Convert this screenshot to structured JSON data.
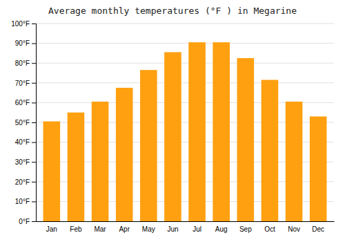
{
  "chart_data": {
    "type": "bar",
    "title": "Average monthly temperatures (°F ) in Megarine",
    "categories": [
      "Jan",
      "Feb",
      "Mar",
      "Apr",
      "May",
      "Jun",
      "Jul",
      "Aug",
      "Sep",
      "Oct",
      "Nov",
      "Dec"
    ],
    "values": [
      50.5,
      55,
      60.5,
      67.5,
      76.5,
      85.5,
      90.5,
      90.5,
      82.5,
      71.5,
      60.5,
      53
    ],
    "color": "#FFA010",
    "ylim": [
      0,
      100
    ],
    "yticks": [
      {
        "value": 0,
        "label": "0°F"
      },
      {
        "value": 10,
        "label": "10°F"
      },
      {
        "value": 20,
        "label": "20°F"
      },
      {
        "value": 30,
        "label": "30°F"
      },
      {
        "value": 40,
        "label": "40°F"
      },
      {
        "value": 50,
        "label": "50°F"
      },
      {
        "value": 60,
        "label": "60°F"
      },
      {
        "value": 70,
        "label": "70°F"
      },
      {
        "value": 80,
        "label": "80°F"
      },
      {
        "value": 90,
        "label": "90°F"
      },
      {
        "value": 100,
        "label": "100°F"
      }
    ],
    "grid": true
  }
}
